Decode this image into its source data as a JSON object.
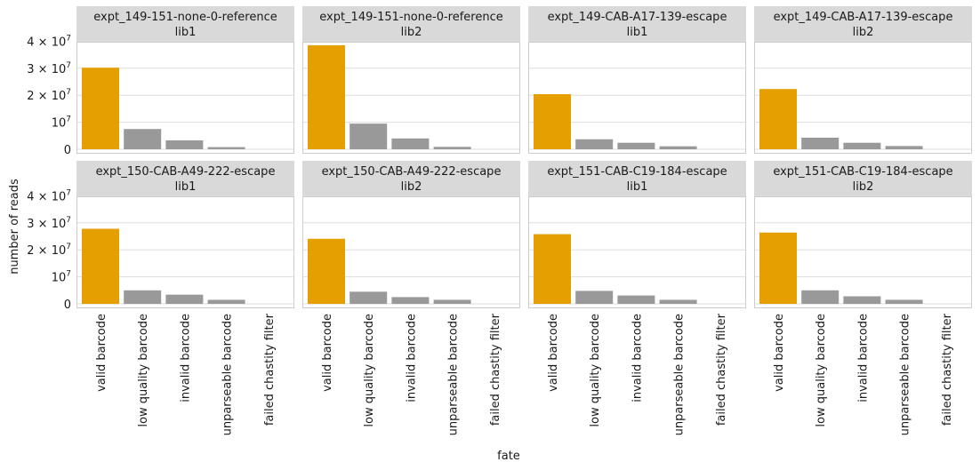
{
  "chart_data": {
    "type": "bar",
    "layout": "facet-grid",
    "xlabel": "fate",
    "ylabel": "number of reads",
    "categories": [
      "valid barcode",
      "low quality barcode",
      "invalid barcode",
      "unparseable barcode",
      "failed chastity filter"
    ],
    "highlight_category": "valid barcode",
    "colors": {
      "highlight": "#E69F00",
      "other": "#999999",
      "strip_bg": "#D9D9D9",
      "panel_border": "#CCCCCC",
      "grid": "#DDDDDD"
    },
    "ylim": [
      0,
      42000000
    ],
    "yticks": [
      {
        "value": 0,
        "base": "0",
        "exp": ""
      },
      {
        "value": 10000000,
        "base": "10",
        "exp": "7"
      },
      {
        "value": 20000000,
        "base": "2 × 10",
        "exp": "7"
      },
      {
        "value": 30000000,
        "base": "3 × 10",
        "exp": "7"
      },
      {
        "value": 40000000,
        "base": "4 × 10",
        "exp": "7"
      }
    ],
    "grid": true,
    "legend": "none",
    "panels": [
      {
        "strip_top": "expt_149-151-none-0-reference",
        "strip_bottom": "lib1",
        "values": [
          30200000,
          7500000,
          3300000,
          800000,
          0
        ]
      },
      {
        "strip_top": "expt_149-151-none-0-reference",
        "strip_bottom": "lib2",
        "values": [
          38500000,
          9500000,
          4000000,
          900000,
          0
        ]
      },
      {
        "strip_top": "expt_149-CAB-A17-139-escape",
        "strip_bottom": "lib1",
        "values": [
          20400000,
          3700000,
          2400000,
          1100000,
          0
        ]
      },
      {
        "strip_top": "expt_149-CAB-A17-139-escape",
        "strip_bottom": "lib2",
        "values": [
          22300000,
          4300000,
          2400000,
          1200000,
          0
        ]
      },
      {
        "strip_top": "expt_150-CAB-A49-222-escape",
        "strip_bottom": "lib1",
        "values": [
          27800000,
          5000000,
          3400000,
          1500000,
          0
        ]
      },
      {
        "strip_top": "expt_150-CAB-A49-222-escape",
        "strip_bottom": "lib2",
        "values": [
          24100000,
          4500000,
          2500000,
          1500000,
          0
        ]
      },
      {
        "strip_top": "expt_151-CAB-C19-184-escape",
        "strip_bottom": "lib1",
        "values": [
          25800000,
          4800000,
          3100000,
          1500000,
          0
        ]
      },
      {
        "strip_top": "expt_151-CAB-C19-184-escape",
        "strip_bottom": "lib2",
        "values": [
          26400000,
          5000000,
          2800000,
          1500000,
          0
        ]
      }
    ]
  }
}
